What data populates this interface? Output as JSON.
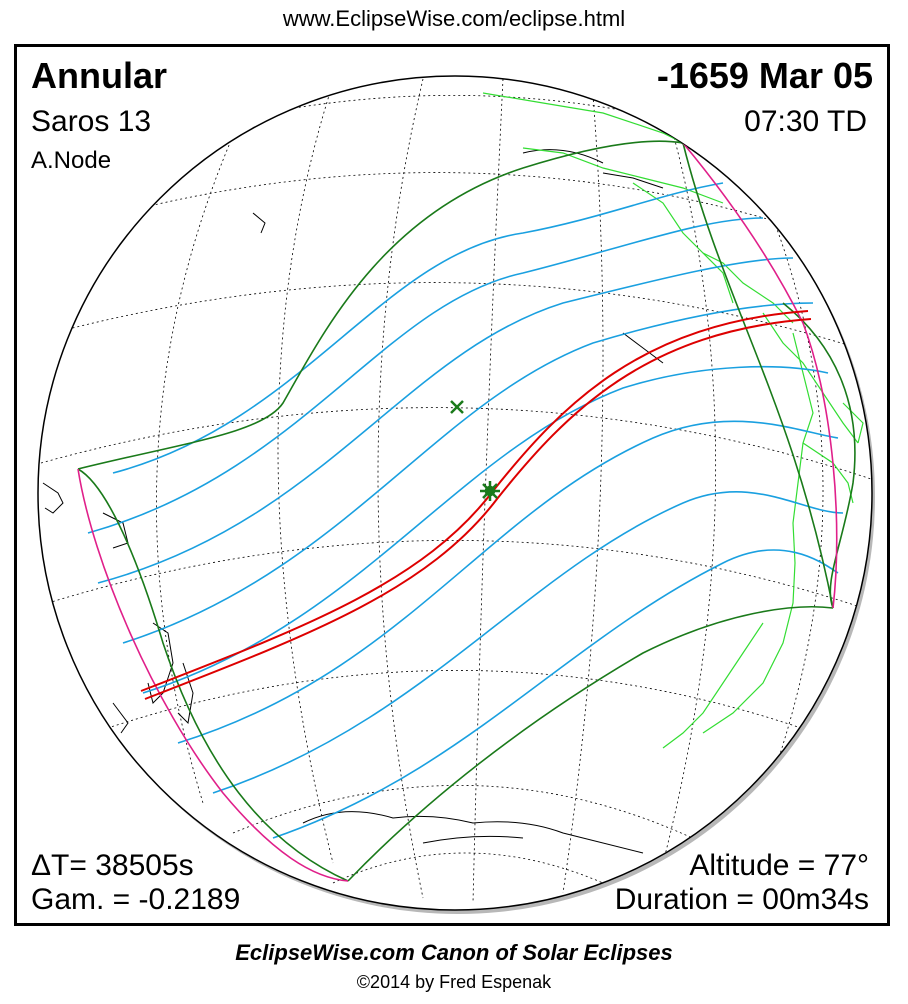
{
  "header_url": "www.EclipseWise.com/eclipse.html",
  "eclipse": {
    "type": "Annular",
    "date": "-1659 Mar 05",
    "saros": "Saros  13",
    "time": "07:30 TD",
    "node": "A.Node",
    "delta_t": "ΔT=  38505s",
    "gamma": "Gam. = -0.2189",
    "altitude": "Altitude = 77°",
    "duration": "Duration = 00m34s"
  },
  "footer": {
    "title": "EclipseWise.com Canon of Solar Eclipses",
    "copyright": "©2014 by Fred Espenak"
  },
  "colors": {
    "central_path": "#dd0000",
    "penumbral_limits": "#1a7a1a",
    "contour_lines": "#1aa0e0",
    "rise_set_curves": "#e0208a",
    "coastlines_east": "#33dd33",
    "coastlines": "#000000",
    "grid": "#000000"
  },
  "icons": {
    "greatest_eclipse": "star-burst-icon",
    "subsolar_point": "x-mark-icon"
  }
}
